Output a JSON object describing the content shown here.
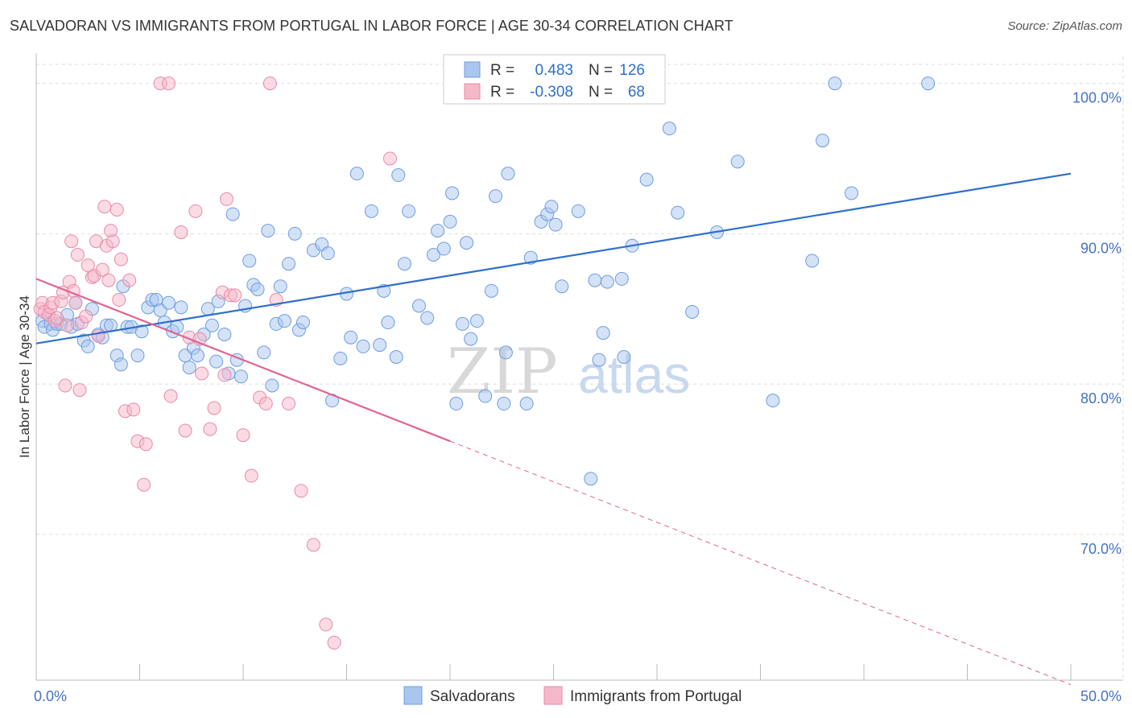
{
  "title": "SALVADORAN VS IMMIGRANTS FROM PORTUGAL IN LABOR FORCE | AGE 30-34 CORRELATION CHART",
  "source": "Source: ZipAtlas.com",
  "watermark": {
    "zip": "ZIP",
    "atlas": "atlas"
  },
  "colors": {
    "blue_fill": "#a9c6ef",
    "blue_stroke": "#6d9de0",
    "blue_line": "#2e6fcd",
    "pink_fill": "#f5b8c9",
    "pink_stroke": "#e98aa7",
    "pink_line": "#e0648f",
    "tick_text": "#4472c4",
    "grid": "#dddddd"
  },
  "legend": {
    "rows": [
      {
        "r_label": "R =",
        "r_value": "0.483",
        "n_label": "N =",
        "n_value": "126"
      },
      {
        "r_label": "R =",
        "r_value": "-0.308",
        "n_label": "N =",
        "n_value": "68"
      }
    ]
  },
  "chart_data": {
    "type": "scatter",
    "title": "SALVADORAN VS IMMIGRANTS FROM PORTUGAL IN LABOR FORCE | AGE 30-34 CORRELATION CHART",
    "xlabel": "",
    "ylabel": "In Labor Force | Age 30-34",
    "xlim": [
      0,
      50
    ],
    "ylim": [
      60.3,
      101.8
    ],
    "x_tick_labels": [
      "0.0%",
      "50.0%"
    ],
    "y_ticks": [
      70,
      80,
      90,
      100
    ],
    "y_tick_labels": [
      "70.0%",
      "80.0%",
      "90.0%",
      "100.0%"
    ],
    "grid": true,
    "legend_position": "bottom",
    "series": [
      {
        "name": "Salvadorans",
        "r": 0.483,
        "n": 126,
        "trend": {
          "x": [
            0,
            50
          ],
          "y": [
            82.7,
            94.0
          ],
          "dashed_from": null
        },
        "points": [
          [
            0.3,
            84.2
          ],
          [
            0.4,
            83.8
          ],
          [
            0.6,
            84.6
          ],
          [
            0.7,
            84.0
          ],
          [
            0.8,
            83.6
          ],
          [
            1.0,
            84.0
          ],
          [
            1.2,
            84.0
          ],
          [
            1.5,
            84.6
          ],
          [
            1.7,
            83.8
          ],
          [
            1.9,
            85.4
          ],
          [
            2.0,
            84.0
          ],
          [
            2.3,
            82.9
          ],
          [
            2.5,
            82.5
          ],
          [
            2.7,
            85.0
          ],
          [
            3.0,
            83.3
          ],
          [
            3.2,
            83.1
          ],
          [
            3.4,
            83.9
          ],
          [
            3.6,
            83.9
          ],
          [
            3.9,
            81.9
          ],
          [
            4.1,
            81.3
          ],
          [
            4.2,
            86.5
          ],
          [
            4.4,
            83.8
          ],
          [
            4.6,
            83.8
          ],
          [
            4.9,
            81.9
          ],
          [
            5.1,
            83.5
          ],
          [
            5.4,
            85.1
          ],
          [
            5.6,
            85.6
          ],
          [
            5.8,
            85.6
          ],
          [
            6.0,
            84.9
          ],
          [
            6.2,
            84.1
          ],
          [
            6.4,
            85.4
          ],
          [
            6.6,
            83.5
          ],
          [
            6.8,
            83.8
          ],
          [
            7.0,
            85.1
          ],
          [
            7.2,
            81.9
          ],
          [
            7.4,
            81.1
          ],
          [
            7.6,
            82.4
          ],
          [
            7.8,
            81.9
          ],
          [
            8.1,
            83.3
          ],
          [
            8.3,
            85.0
          ],
          [
            8.5,
            83.9
          ],
          [
            8.7,
            81.5
          ],
          [
            8.8,
            85.5
          ],
          [
            9.1,
            83.3
          ],
          [
            9.3,
            80.7
          ],
          [
            9.5,
            91.3
          ],
          [
            9.7,
            81.6
          ],
          [
            9.9,
            80.5
          ],
          [
            10.1,
            85.2
          ],
          [
            10.3,
            88.2
          ],
          [
            10.5,
            86.6
          ],
          [
            10.7,
            86.3
          ],
          [
            11.0,
            82.1
          ],
          [
            11.2,
            90.2
          ],
          [
            11.4,
            79.9
          ],
          [
            11.6,
            84.0
          ],
          [
            11.8,
            86.5
          ],
          [
            12.0,
            84.2
          ],
          [
            12.2,
            88.0
          ],
          [
            12.5,
            90.0
          ],
          [
            12.7,
            83.6
          ],
          [
            12.9,
            84.1
          ],
          [
            13.4,
            88.9
          ],
          [
            13.8,
            89.3
          ],
          [
            14.1,
            88.7
          ],
          [
            14.3,
            78.9
          ],
          [
            14.7,
            81.7
          ],
          [
            15.0,
            86.0
          ],
          [
            15.2,
            83.1
          ],
          [
            15.5,
            94.0
          ],
          [
            15.8,
            82.5
          ],
          [
            16.2,
            91.5
          ],
          [
            16.6,
            82.6
          ],
          [
            16.8,
            86.2
          ],
          [
            17.0,
            84.1
          ],
          [
            17.4,
            81.8
          ],
          [
            17.5,
            93.9
          ],
          [
            17.8,
            88.0
          ],
          [
            18.0,
            91.5
          ],
          [
            18.5,
            85.2
          ],
          [
            18.9,
            84.4
          ],
          [
            19.2,
            88.6
          ],
          [
            19.4,
            90.2
          ],
          [
            19.7,
            89.0
          ],
          [
            20.0,
            90.8
          ],
          [
            20.1,
            92.7
          ],
          [
            20.3,
            78.7
          ],
          [
            20.6,
            84.0
          ],
          [
            20.8,
            89.4
          ],
          [
            21.0,
            83.0
          ],
          [
            21.3,
            84.2
          ],
          [
            21.7,
            79.2
          ],
          [
            22.0,
            86.2
          ],
          [
            22.2,
            92.5
          ],
          [
            22.6,
            78.7
          ],
          [
            22.7,
            82.1
          ],
          [
            22.8,
            94.0
          ],
          [
            23.7,
            78.7
          ],
          [
            23.9,
            88.4
          ],
          [
            24.4,
            90.8
          ],
          [
            24.7,
            91.3
          ],
          [
            24.9,
            91.8
          ],
          [
            25.1,
            90.6
          ],
          [
            25.4,
            86.5
          ],
          [
            26.0,
            100.0
          ],
          [
            26.2,
            91.5
          ],
          [
            26.8,
            73.7
          ],
          [
            27.0,
            86.9
          ],
          [
            27.2,
            81.6
          ],
          [
            27.4,
            83.4
          ],
          [
            27.6,
            86.8
          ],
          [
            28.3,
            87.0
          ],
          [
            28.4,
            81.8
          ],
          [
            28.8,
            89.2
          ],
          [
            29.5,
            93.6
          ],
          [
            30.6,
            97.0
          ],
          [
            31.0,
            91.4
          ],
          [
            31.7,
            84.8
          ],
          [
            32.9,
            90.1
          ],
          [
            33.9,
            94.8
          ],
          [
            35.6,
            78.9
          ],
          [
            37.5,
            88.2
          ],
          [
            38.0,
            96.2
          ],
          [
            38.6,
            100.0
          ],
          [
            39.4,
            92.7
          ],
          [
            43.1,
            100.0
          ]
        ]
      },
      {
        "name": "Immigrants from Portugal",
        "r": -0.308,
        "n": 68,
        "trend": {
          "x": [
            0,
            50
          ],
          "y": [
            87.0,
            60.0
          ],
          "dashed_from": 20.0
        },
        "points": [
          [
            0.2,
            85.0
          ],
          [
            0.3,
            85.4
          ],
          [
            0.4,
            84.8
          ],
          [
            0.6,
            84.6
          ],
          [
            0.7,
            85.1
          ],
          [
            0.8,
            85.4
          ],
          [
            0.9,
            84.2
          ],
          [
            1.0,
            84.4
          ],
          [
            1.2,
            85.5
          ],
          [
            1.3,
            86.1
          ],
          [
            1.4,
            79.9
          ],
          [
            1.5,
            83.9
          ],
          [
            1.6,
            86.8
          ],
          [
            1.7,
            89.5
          ],
          [
            1.8,
            86.2
          ],
          [
            1.9,
            85.4
          ],
          [
            2.0,
            88.6
          ],
          [
            2.1,
            79.6
          ],
          [
            2.2,
            84.1
          ],
          [
            2.4,
            84.5
          ],
          [
            2.5,
            87.9
          ],
          [
            2.7,
            87.1
          ],
          [
            2.8,
            87.2
          ],
          [
            2.9,
            89.5
          ],
          [
            3.0,
            83.2
          ],
          [
            3.2,
            87.6
          ],
          [
            3.3,
            91.8
          ],
          [
            3.4,
            89.2
          ],
          [
            3.5,
            86.9
          ],
          [
            3.6,
            90.2
          ],
          [
            3.7,
            89.5
          ],
          [
            3.9,
            91.6
          ],
          [
            4.0,
            85.6
          ],
          [
            4.1,
            88.3
          ],
          [
            4.3,
            78.2
          ],
          [
            4.5,
            86.9
          ],
          [
            4.7,
            78.3
          ],
          [
            4.9,
            76.2
          ],
          [
            5.2,
            73.3
          ],
          [
            5.3,
            76.0
          ],
          [
            6.0,
            100.0
          ],
          [
            6.4,
            100.0
          ],
          [
            6.5,
            79.2
          ],
          [
            7.0,
            90.1
          ],
          [
            7.2,
            76.9
          ],
          [
            7.4,
            83.1
          ],
          [
            7.7,
            91.5
          ],
          [
            7.9,
            83.0
          ],
          [
            8.0,
            80.7
          ],
          [
            8.4,
            77.0
          ],
          [
            8.6,
            78.4
          ],
          [
            9.0,
            86.1
          ],
          [
            9.1,
            80.6
          ],
          [
            9.2,
            92.3
          ],
          [
            9.4,
            85.9
          ],
          [
            9.6,
            85.9
          ],
          [
            10.0,
            76.6
          ],
          [
            10.4,
            73.9
          ],
          [
            10.8,
            79.1
          ],
          [
            11.1,
            78.7
          ],
          [
            11.3,
            100.0
          ],
          [
            11.6,
            85.6
          ],
          [
            12.2,
            78.7
          ],
          [
            12.8,
            72.9
          ],
          [
            13.4,
            69.3
          ],
          [
            14.0,
            64.0
          ],
          [
            14.4,
            62.8
          ],
          [
            17.1,
            95.0
          ]
        ]
      }
    ]
  },
  "bottom_legend": [
    {
      "label": "Salvadorans",
      "swatch": "blue"
    },
    {
      "label": "Immigrants from Portugal",
      "swatch": "pink"
    }
  ]
}
